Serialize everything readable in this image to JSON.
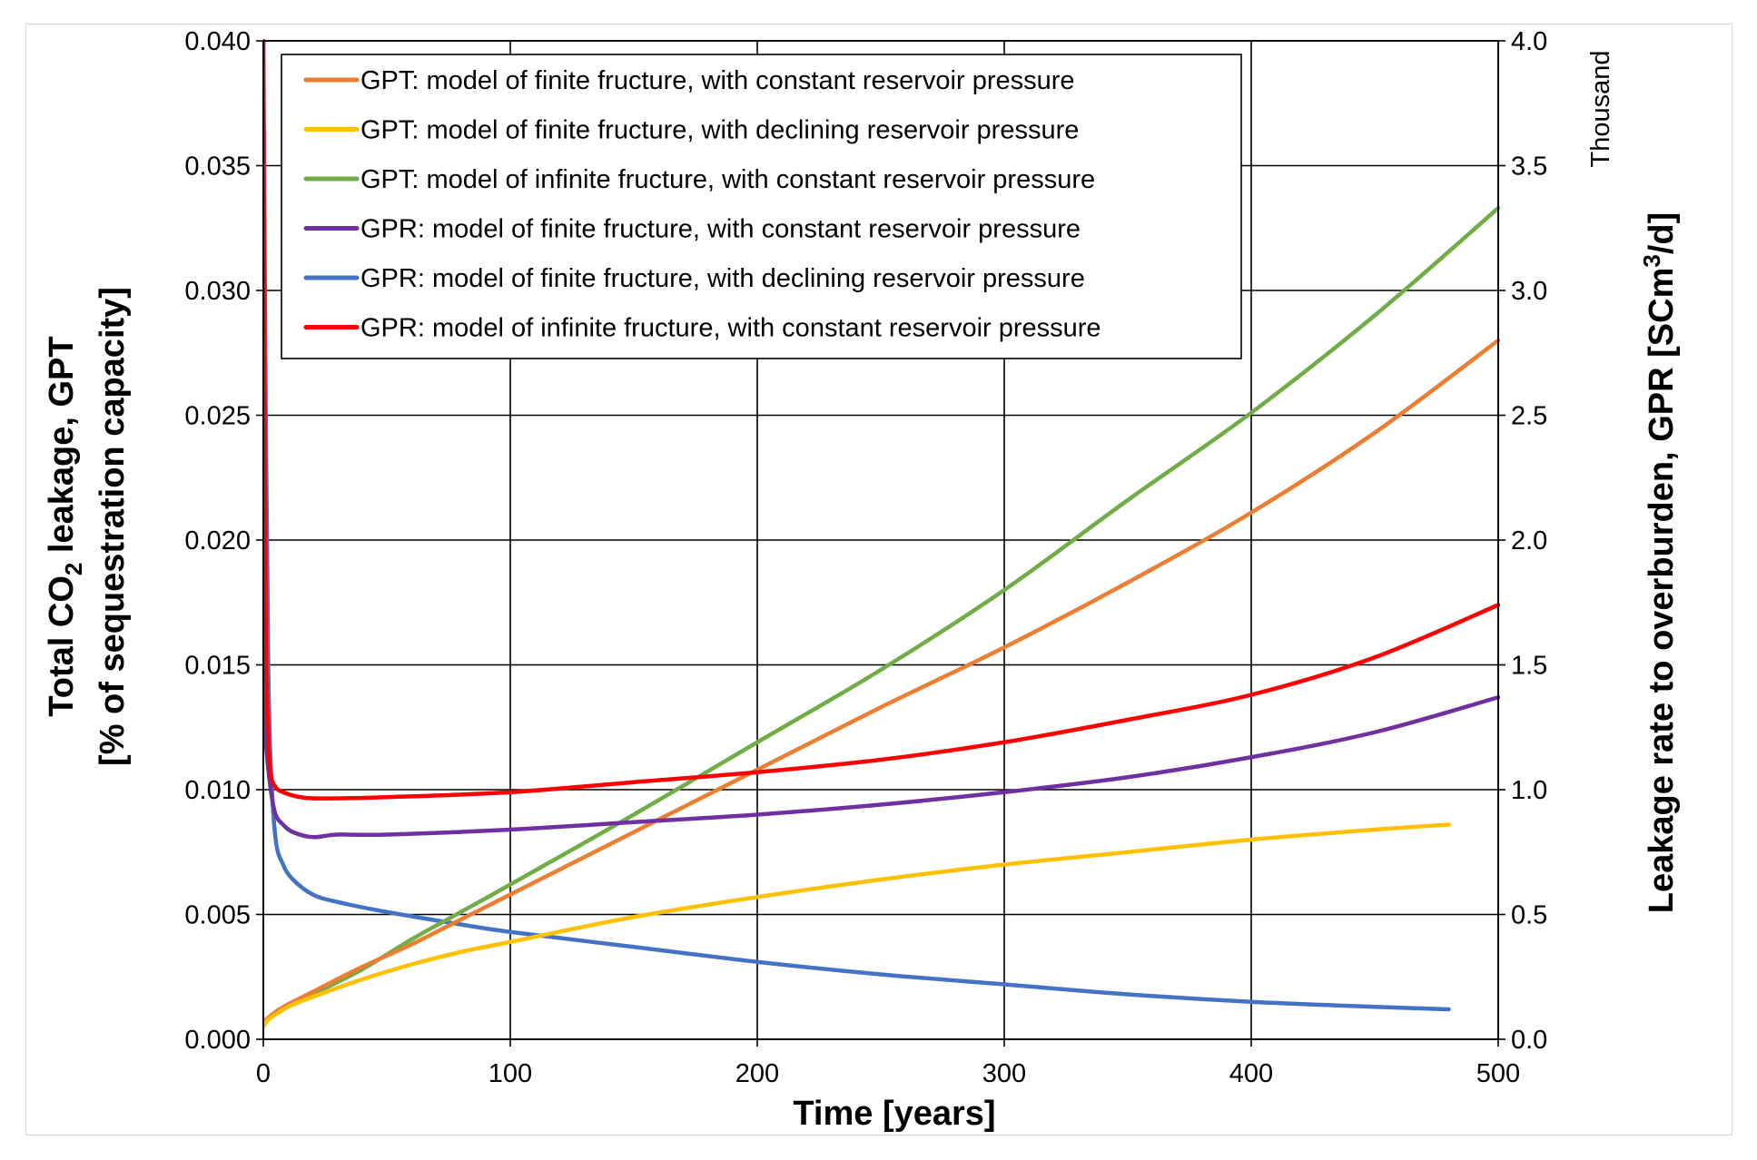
{
  "chart_data": {
    "type": "line",
    "x_axis": {
      "label": "Time [years]",
      "range": [
        0,
        500
      ],
      "ticks": [
        "0",
        "100",
        "200",
        "300",
        "400",
        "500"
      ]
    },
    "y_left_axis": {
      "label_line1_pre": "Total CO",
      "label_line1_sub": "2",
      "label_line1_post": " leakage, GPT",
      "label_line2": "[% of sequestration capacity]",
      "range": [
        0,
        0.04
      ],
      "ticks": [
        "0.000",
        "0.005",
        "0.010",
        "0.015",
        "0.020",
        "0.025",
        "0.030",
        "0.035",
        "0.040"
      ]
    },
    "y_right_axis": {
      "label_pre": "Leakage rate to overburden, GPR [SCm",
      "label_sup": "3",
      "label_post": "/d]",
      "units_note": "Thousand",
      "range": [
        0,
        4.0
      ],
      "ticks": [
        "0.0",
        "0.5",
        "1.0",
        "1.5",
        "2.0",
        "2.5",
        "3.0",
        "3.5",
        "4.0"
      ]
    },
    "grid": true,
    "legend_position": "top-left inside plot",
    "series": [
      {
        "name": "GPT: model of finite fructure, with constant reservoir pressure",
        "axis": "left",
        "color": "#ED7D31",
        "points": [
          [
            0,
            0.0007
          ],
          [
            5,
            0.0011
          ],
          [
            10,
            0.0014
          ],
          [
            20,
            0.0019
          ],
          [
            40,
            0.0029
          ],
          [
            60,
            0.0038
          ],
          [
            80,
            0.0048
          ],
          [
            100,
            0.0058
          ],
          [
            150,
            0.0083
          ],
          [
            200,
            0.0108
          ],
          [
            250,
            0.0133
          ],
          [
            300,
            0.0157
          ],
          [
            350,
            0.0183
          ],
          [
            400,
            0.0211
          ],
          [
            450,
            0.0243
          ],
          [
            500,
            0.028
          ]
        ]
      },
      {
        "name": "GPT: model of finite fructure, with declining reservoir pressure",
        "axis": "left",
        "color": "#FFC000",
        "points": [
          [
            0,
            0.0005
          ],
          [
            2,
            0.0008
          ],
          [
            5,
            0.001
          ],
          [
            10,
            0.0013
          ],
          [
            20,
            0.0017
          ],
          [
            40,
            0.0024
          ],
          [
            60,
            0.003
          ],
          [
            80,
            0.0035
          ],
          [
            100,
            0.0039
          ],
          [
            150,
            0.0049
          ],
          [
            200,
            0.0057
          ],
          [
            250,
            0.0064
          ],
          [
            300,
            0.007
          ],
          [
            350,
            0.0075
          ],
          [
            400,
            0.008
          ],
          [
            450,
            0.0084
          ],
          [
            480,
            0.0086
          ]
        ]
      },
      {
        "name": "GPT: model of infinite fructure, with constant reservoir pressure",
        "axis": "left",
        "color": "#70AD47",
        "points": [
          [
            0,
            0.0007
          ],
          [
            5,
            0.001
          ],
          [
            10,
            0.0013
          ],
          [
            20,
            0.0018
          ],
          [
            40,
            0.0028
          ],
          [
            60,
            0.004
          ],
          [
            80,
            0.0051
          ],
          [
            100,
            0.0062
          ],
          [
            150,
            0.009
          ],
          [
            200,
            0.0119
          ],
          [
            250,
            0.0148
          ],
          [
            300,
            0.018
          ],
          [
            350,
            0.0216
          ],
          [
            400,
            0.0251
          ],
          [
            450,
            0.029
          ],
          [
            500,
            0.0333
          ]
        ]
      },
      {
        "name": "GPR: model of finite fructure, with constant reservoir pressure",
        "axis": "right",
        "color": "#7030A0",
        "points": [
          [
            0,
            1.5
          ],
          [
            1,
            1.2
          ],
          [
            3,
            1.0
          ],
          [
            5,
            0.9
          ],
          [
            8,
            0.86
          ],
          [
            12,
            0.83
          ],
          [
            20,
            0.81
          ],
          [
            30,
            0.82
          ],
          [
            50,
            0.82
          ],
          [
            100,
            0.84
          ],
          [
            150,
            0.87
          ],
          [
            200,
            0.9
          ],
          [
            250,
            0.94
          ],
          [
            300,
            0.99
          ],
          [
            350,
            1.05
          ],
          [
            400,
            1.13
          ],
          [
            450,
            1.23
          ],
          [
            500,
            1.37
          ]
        ]
      },
      {
        "name": "GPR: model of finite fructure, with declining reservoir pressure",
        "axis": "right",
        "color": "#4472C4",
        "points": [
          [
            0,
            4.0
          ],
          [
            1,
            2.5
          ],
          [
            2,
            1.5
          ],
          [
            3,
            1.1
          ],
          [
            5,
            0.8
          ],
          [
            8,
            0.7
          ],
          [
            12,
            0.64
          ],
          [
            20,
            0.58
          ],
          [
            30,
            0.55
          ],
          [
            50,
            0.51
          ],
          [
            80,
            0.46
          ],
          [
            100,
            0.43
          ],
          [
            150,
            0.37
          ],
          [
            200,
            0.31
          ],
          [
            250,
            0.26
          ],
          [
            300,
            0.22
          ],
          [
            350,
            0.18
          ],
          [
            400,
            0.15
          ],
          [
            450,
            0.13
          ],
          [
            480,
            0.12
          ]
        ]
      },
      {
        "name": "GPR: model of infinite fructure, with constant reservoir pressure",
        "axis": "right",
        "color": "#FF0000",
        "points": [
          [
            0,
            4.0
          ],
          [
            0.5,
            2.5
          ],
          [
            1,
            1.6
          ],
          [
            2,
            1.2
          ],
          [
            3,
            1.06
          ],
          [
            5,
            1.01
          ],
          [
            8,
            0.99
          ],
          [
            15,
            0.97
          ],
          [
            25,
            0.965
          ],
          [
            50,
            0.97
          ],
          [
            100,
            0.99
          ],
          [
            150,
            1.03
          ],
          [
            200,
            1.07
          ],
          [
            250,
            1.12
          ],
          [
            300,
            1.19
          ],
          [
            350,
            1.28
          ],
          [
            400,
            1.38
          ],
          [
            450,
            1.53
          ],
          [
            500,
            1.74
          ]
        ]
      }
    ]
  }
}
